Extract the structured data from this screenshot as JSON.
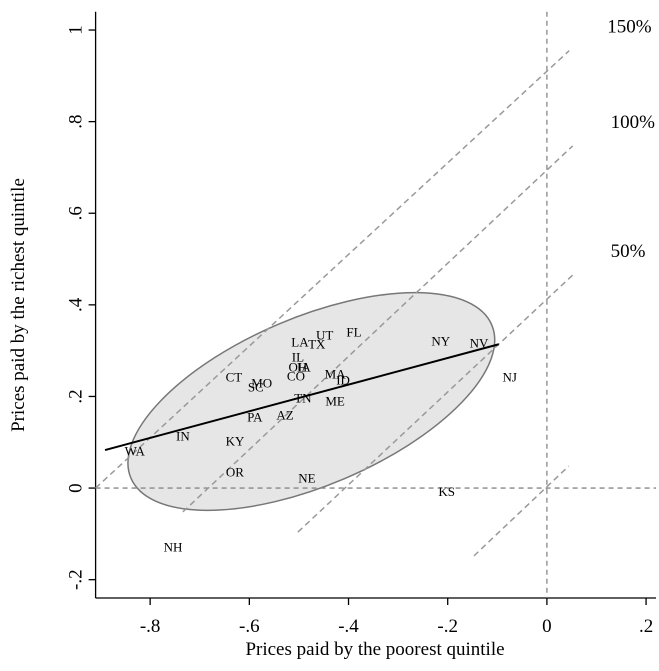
{
  "chart_data": {
    "type": "scatter",
    "xlabel": "Prices paid by the poorest quintile",
    "ylabel": "Prices paid by the richest quintile",
    "xlim": [
      -0.91,
      0.22
    ],
    "ylim": [
      -0.24,
      1.04
    ],
    "xticks": [
      {
        "value": -0.8,
        "label": "-.8"
      },
      {
        "value": -0.6,
        "label": "-.6"
      },
      {
        "value": -0.4,
        "label": "-.4"
      },
      {
        "value": -0.2,
        "label": "-.2"
      },
      0,
      {
        "value": 0.2,
        "label": ".2"
      }
    ],
    "yticks": [
      {
        "value": -0.2,
        "label": "-.2"
      },
      0,
      {
        "value": 0.2,
        "label": ".2"
      },
      {
        "value": 0.4,
        "label": ".4"
      },
      {
        "value": 0.6,
        "label": ".6"
      },
      {
        "value": 0.8,
        "label": ".8"
      },
      1
    ],
    "labels": [
      "WA",
      "IN",
      "KY",
      "OR",
      "NH",
      "CT",
      "MO",
      "SC",
      "PA",
      "AZ",
      "LA",
      "IL",
      "OH",
      "IA",
      "CO",
      "UT",
      "TX",
      "FL",
      "TN",
      "MA",
      "ID",
      "ME",
      "NE",
      "NY",
      "NV",
      "NJ",
      "KS"
    ],
    "x": [
      -0.831,
      -0.734,
      -0.629,
      -0.629,
      -0.754,
      -0.631,
      -0.575,
      -0.587,
      -0.589,
      -0.528,
      -0.498,
      -0.502,
      -0.502,
      -0.49,
      -0.506,
      -0.448,
      -0.464,
      -0.389,
      -0.492,
      -0.427,
      -0.411,
      -0.427,
      -0.484,
      -0.214,
      -0.137,
      -0.075,
      -0.202
    ],
    "y": [
      0.081,
      0.114,
      0.103,
      0.035,
      -0.129,
      0.242,
      0.229,
      0.221,
      0.155,
      0.159,
      0.319,
      0.286,
      0.264,
      0.264,
      0.245,
      0.334,
      0.314,
      0.341,
      0.197,
      0.249,
      0.236,
      0.19,
      0.022,
      0.321,
      0.317,
      0.242,
      -0.007
    ],
    "fit_line": {
      "x": [
        -0.891,
        -0.097
      ],
      "y": [
        0.083,
        0.314
      ],
      "color": "#000000"
    },
    "reference_lines": [
      {
        "label": "150%",
        "x": [
          -0.91,
          0.045
        ],
        "y": [
          0,
          0.955
        ]
      },
      {
        "label": "100%",
        "x": [
          -0.734,
          0.052
        ],
        "y": [
          -0.052,
          0.747
        ]
      },
      {
        "label": "50%",
        "x": [
          -0.502,
          0.052
        ],
        "y": [
          -0.096,
          0.465
        ]
      },
      {
        "label": null,
        "x": [
          -0.147,
          0.044
        ],
        "y": [
          -0.148,
          0.048
        ]
      }
    ],
    "ellipse": {
      "center": [
        -0.475,
        0.189
      ]
    }
  }
}
